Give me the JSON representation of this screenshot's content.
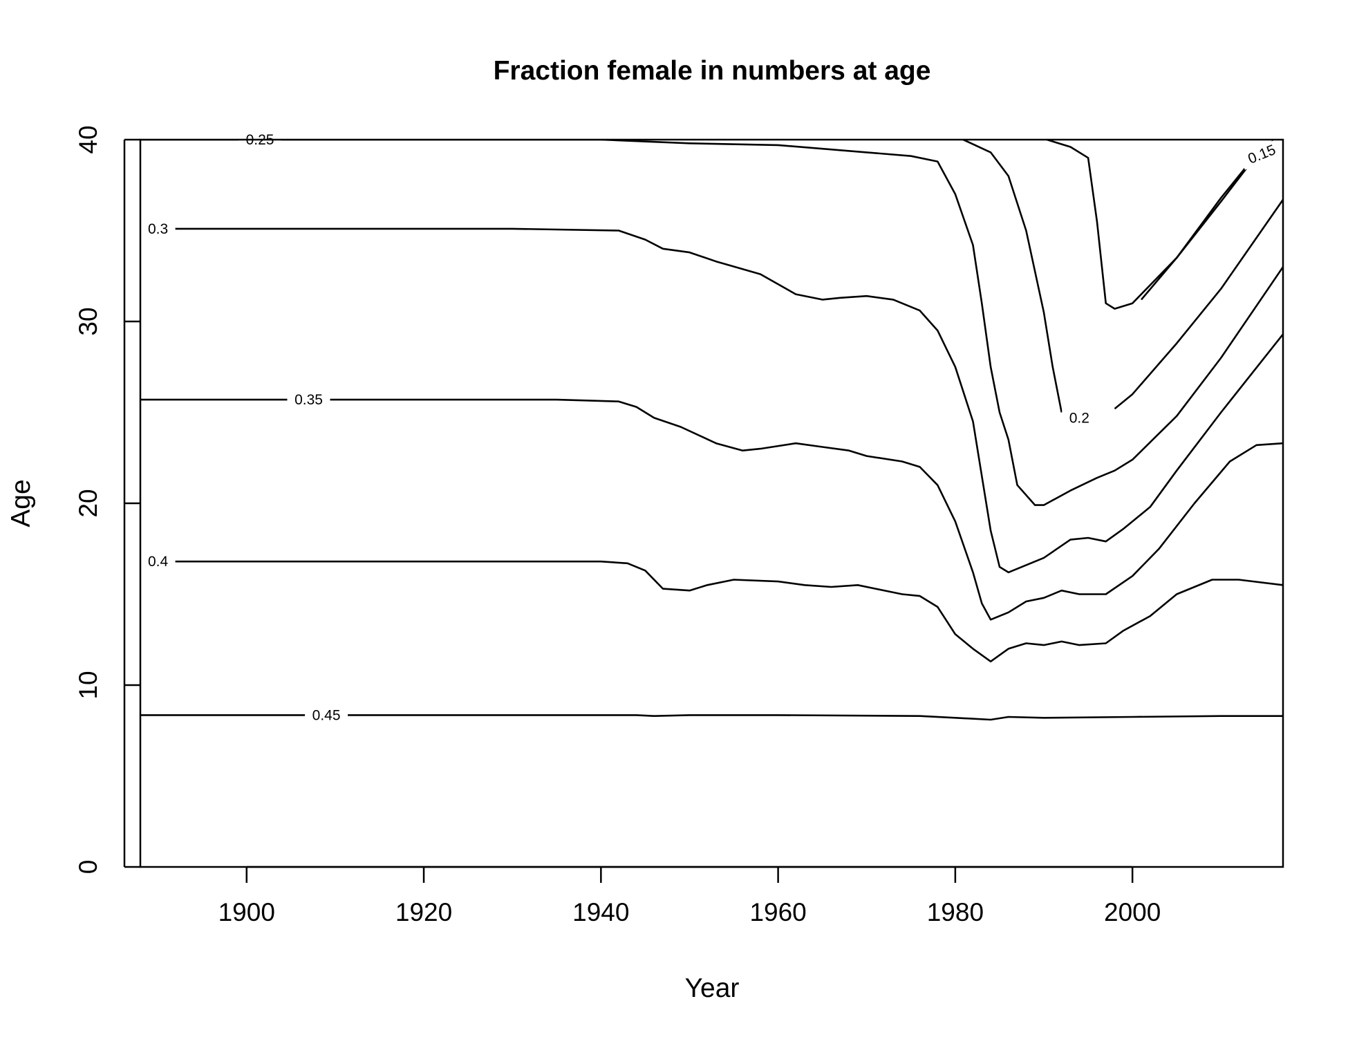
{
  "chart_data": {
    "type": "contour",
    "title": "Fraction female in numbers at age",
    "xlabel": "Year",
    "ylabel": "Age",
    "xlim": [
      1888,
      2017
    ],
    "ylim": [
      0,
      40
    ],
    "xticks": [
      1900,
      1920,
      1940,
      1960,
      1980,
      2000
    ],
    "yticks": [
      0,
      10,
      20,
      30,
      40
    ],
    "grid": false,
    "legend": "none",
    "contours": [
      {
        "level": "0.15",
        "points": [
          [
            2001,
            31.2
          ],
          [
            2005,
            33.5
          ],
          [
            2010,
            36.6
          ],
          [
            2013,
            38.5
          ],
          [
            2017,
            40.5
          ]
        ]
      },
      {
        "level": "0.2",
        "points": [
          [
            1989,
            40.2
          ],
          [
            1993,
            39.6
          ],
          [
            1995,
            39.0
          ],
          [
            1996,
            35.5
          ],
          [
            1997,
            31.0
          ],
          [
            1998,
            30.7
          ],
          [
            2000,
            31.0
          ],
          [
            2005,
            33.5
          ],
          [
            2010,
            36.8
          ],
          [
            2013,
            38.6
          ]
        ]
      },
      {
        "level": "0.2",
        "points": [
          [
            1998,
            25.2
          ],
          [
            2000,
            26.0
          ],
          [
            2005,
            28.8
          ],
          [
            2010,
            31.8
          ],
          [
            2017,
            36.7
          ]
        ]
      },
      {
        "level": "0.2",
        "points": [
          [
            1980,
            40.2
          ],
          [
            1984,
            39.3
          ],
          [
            1986,
            38.0
          ],
          [
            1988,
            35.0
          ],
          [
            1990,
            30.5
          ],
          [
            1991,
            27.5
          ],
          [
            1992,
            25.0
          ]
        ]
      },
      {
        "level": "0.25",
        "points": [
          [
            1888,
            40.0
          ],
          [
            1940,
            40.0
          ],
          [
            1950,
            39.8
          ],
          [
            1960,
            39.7
          ],
          [
            1970,
            39.3
          ],
          [
            1975,
            39.1
          ],
          [
            1978,
            38.8
          ],
          [
            1980,
            37.0
          ],
          [
            1982,
            34.2
          ],
          [
            1983,
            31.0
          ],
          [
            1984,
            27.5
          ],
          [
            1985,
            25.0
          ],
          [
            1986,
            23.5
          ],
          [
            1987,
            21.0
          ],
          [
            1989,
            19.9
          ],
          [
            1990,
            19.9
          ],
          [
            1993,
            20.7
          ],
          [
            1996,
            21.4
          ],
          [
            1998,
            21.8
          ],
          [
            2000,
            22.4
          ],
          [
            2005,
            24.8
          ],
          [
            2010,
            28.0
          ],
          [
            2017,
            33.0
          ]
        ]
      },
      {
        "level": "0.3",
        "points": [
          [
            1888,
            35.1
          ],
          [
            1930,
            35.1
          ],
          [
            1942,
            35.0
          ],
          [
            1945,
            34.5
          ],
          [
            1947,
            34.0
          ],
          [
            1950,
            33.8
          ],
          [
            1953,
            33.3
          ],
          [
            1958,
            32.6
          ],
          [
            1962,
            31.5
          ],
          [
            1965,
            31.2
          ],
          [
            1967,
            31.3
          ],
          [
            1970,
            31.4
          ],
          [
            1973,
            31.2
          ],
          [
            1976,
            30.6
          ],
          [
            1978,
            29.5
          ],
          [
            1980,
            27.5
          ],
          [
            1982,
            24.5
          ],
          [
            1983,
            21.5
          ],
          [
            1984,
            18.5
          ],
          [
            1985,
            16.5
          ],
          [
            1986,
            16.2
          ],
          [
            1988,
            16.6
          ],
          [
            1990,
            17.0
          ],
          [
            1993,
            18.0
          ],
          [
            1995,
            18.1
          ],
          [
            1997,
            17.9
          ],
          [
            1999,
            18.6
          ],
          [
            2002,
            19.8
          ],
          [
            2005,
            21.8
          ],
          [
            2010,
            25.0
          ],
          [
            2017,
            29.3
          ]
        ]
      },
      {
        "level": "0.35",
        "points": [
          [
            1888,
            25.7
          ],
          [
            1935,
            25.7
          ],
          [
            1942,
            25.6
          ],
          [
            1944,
            25.3
          ],
          [
            1946,
            24.7
          ],
          [
            1949,
            24.2
          ],
          [
            1953,
            23.3
          ],
          [
            1956,
            22.9
          ],
          [
            1958,
            23.0
          ],
          [
            1962,
            23.3
          ],
          [
            1965,
            23.1
          ],
          [
            1968,
            22.9
          ],
          [
            1970,
            22.6
          ],
          [
            1974,
            22.3
          ],
          [
            1976,
            22.0
          ],
          [
            1978,
            21.0
          ],
          [
            1980,
            19.0
          ],
          [
            1982,
            16.2
          ],
          [
            1983,
            14.5
          ],
          [
            1984,
            13.6
          ],
          [
            1986,
            14.0
          ],
          [
            1988,
            14.6
          ],
          [
            1990,
            14.8
          ],
          [
            1992,
            15.2
          ],
          [
            1994,
            15.0
          ],
          [
            1997,
            15.0
          ],
          [
            2000,
            16.0
          ],
          [
            2003,
            17.5
          ],
          [
            2007,
            20.0
          ],
          [
            2011,
            22.3
          ],
          [
            2014,
            23.2
          ],
          [
            2017,
            23.3
          ]
        ]
      },
      {
        "level": "0.4",
        "points": [
          [
            1888,
            16.8
          ],
          [
            1940,
            16.8
          ],
          [
            1943,
            16.7
          ],
          [
            1945,
            16.3
          ],
          [
            1947,
            15.3
          ],
          [
            1950,
            15.2
          ],
          [
            1952,
            15.5
          ],
          [
            1955,
            15.8
          ],
          [
            1960,
            15.7
          ],
          [
            1963,
            15.5
          ],
          [
            1966,
            15.4
          ],
          [
            1969,
            15.5
          ],
          [
            1971,
            15.3
          ],
          [
            1974,
            15.0
          ],
          [
            1976,
            14.9
          ],
          [
            1978,
            14.3
          ],
          [
            1980,
            12.8
          ],
          [
            1982,
            12.0
          ],
          [
            1984,
            11.3
          ],
          [
            1986,
            12.0
          ],
          [
            1988,
            12.3
          ],
          [
            1990,
            12.2
          ],
          [
            1992,
            12.4
          ],
          [
            1994,
            12.2
          ],
          [
            1997,
            12.3
          ],
          [
            1999,
            13.0
          ],
          [
            2002,
            13.8
          ],
          [
            2005,
            15.0
          ],
          [
            2009,
            15.8
          ],
          [
            2012,
            15.8
          ],
          [
            2017,
            15.5
          ]
        ]
      },
      {
        "level": "0.45",
        "points": [
          [
            1888,
            8.35
          ],
          [
            1944,
            8.35
          ],
          [
            1946,
            8.3
          ],
          [
            1950,
            8.35
          ],
          [
            1960,
            8.35
          ],
          [
            1976,
            8.3
          ],
          [
            1980,
            8.2
          ],
          [
            1984,
            8.1
          ],
          [
            1986,
            8.25
          ],
          [
            1990,
            8.2
          ],
          [
            2000,
            8.25
          ],
          [
            2010,
            8.3
          ],
          [
            2017,
            8.3
          ]
        ]
      }
    ],
    "labels": [
      {
        "text": "0.15",
        "x": 2014.6,
        "y": 39.2,
        "rotate": -22
      },
      {
        "text": "0.2",
        "x": 1994.0,
        "y": 24.7,
        "rotate": 0
      },
      {
        "text": "0.25",
        "x": 1901.5,
        "y": 40.0,
        "rotate": 0
      },
      {
        "text": "0.3",
        "x": 1890.0,
        "y": 35.1,
        "rotate": 0
      },
      {
        "text": "0.35",
        "x": 1907.0,
        "y": 25.7,
        "rotate": 0
      },
      {
        "text": "0.4",
        "x": 1890.0,
        "y": 16.8,
        "rotate": 0
      },
      {
        "text": "0.45",
        "x": 1909.0,
        "y": 8.35,
        "rotate": 0
      }
    ]
  }
}
